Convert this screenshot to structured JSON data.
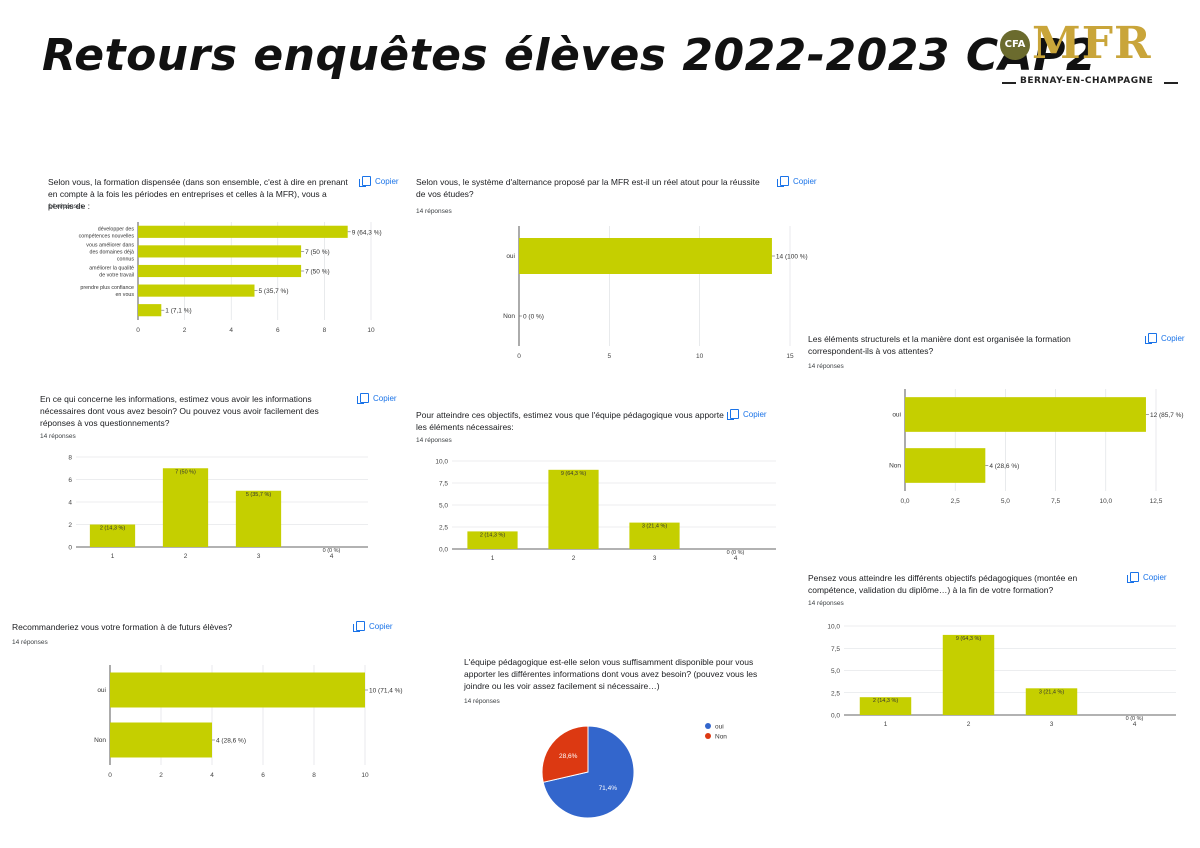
{
  "header": {
    "title": "Retours enquêtes élèves 2022-2023 CAP2",
    "logo_cfa": "CFA",
    "logo_mfr": "MFR",
    "logo_city": "BERNAY-EN-CHAMPAGNE"
  },
  "colors": {
    "bar": "#c5cf00",
    "pie_oui": "#3366cc",
    "pie_non": "#dc3912",
    "link": "#1a73e8"
  },
  "copy_label": "Copier",
  "charts": [
    {
      "question": "Selon vous, la formation dispensée (dans son ensemble, c'est à dire en prenant en compte à la fois les périodes en entreprises et celles à la MFR), vous a permis de :",
      "responses": "14 réponses"
    },
    {
      "question": "Selon vous, le système d'alternance proposé par la MFR est-il un réel atout pour la réussite de vos études?",
      "responses": "14 réponses"
    },
    {
      "question": "Les éléments structurels et la manière dont est organisée la formation correspondent-ils à vos attentes?",
      "responses": "14 réponses"
    },
    {
      "question": "En ce qui concerne les informations, estimez vous avoir les informations nécessaires dont vous avez besoin? Ou pouvez vous avoir facilement des réponses à vos questionnements?",
      "responses": "14 réponses"
    },
    {
      "question": "Pour atteindre ces objectifs, estimez vous que l'équipe pédagogique vous apporte les éléments nécessaires:",
      "responses": "14 réponses"
    },
    {
      "question": "Pensez vous atteindre les différents objectifs pédagogiques (montée en compétence, validation du diplôme…) à la fin de votre formation?",
      "responses": "14 réponses"
    },
    {
      "question": "Recommanderiez vous votre formation à de futurs élèves?",
      "responses": "14 réponses"
    },
    {
      "question": "L'équipe pédagogique est-elle selon vous suffisamment disponible pour vous apporter les différentes informations dont vous avez besoin? (pouvez vous les joindre ou les voir assez facilement si nécessaire…)",
      "responses": "14 réponses"
    }
  ],
  "chart_data": [
    {
      "type": "bar",
      "orientation": "horizontal",
      "categories": [
        "développer des compétences nouvelles",
        "vous améliorer dans des domaines déjà connus",
        "améliorer la qualité de votre travail",
        "prendre plus confiance en vous",
        ""
      ],
      "values": [
        9,
        7,
        7,
        5,
        1
      ],
      "value_labels": [
        "9 (64,3 %)",
        "7 (50 %)",
        "7 (50 %)",
        "5 (35,7 %)",
        "1 (7,1 %)"
      ],
      "xlim": [
        0,
        10
      ],
      "ticks": [
        "0",
        "2",
        "4",
        "6",
        "8",
        "10"
      ]
    },
    {
      "type": "bar",
      "orientation": "horizontal",
      "categories": [
        "oui",
        "Non"
      ],
      "values": [
        14,
        0
      ],
      "value_labels": [
        "14 (100 %)",
        "0 (0 %)"
      ],
      "xlim": [
        0,
        15
      ],
      "ticks": [
        "0",
        "5",
        "10",
        "15"
      ]
    },
    {
      "type": "bar",
      "orientation": "horizontal",
      "categories": [
        "oui",
        "Non"
      ],
      "values": [
        12,
        4
      ],
      "value_labels": [
        "12 (85,7 %)",
        "4 (28,6 %)"
      ],
      "xlim": [
        0,
        12.5
      ],
      "ticks": [
        "0,0",
        "2,5",
        "5,0",
        "7,5",
        "10,0",
        "12,5"
      ]
    },
    {
      "type": "bar",
      "orientation": "vertical",
      "categories": [
        "1",
        "2",
        "3",
        "4"
      ],
      "values": [
        2,
        7,
        5,
        0
      ],
      "value_labels": [
        "2 (14,3 %)",
        "7 (50 %)",
        "5 (35,7 %)",
        "0 (0 %)"
      ],
      "ylim": [
        0,
        8
      ],
      "ticks": [
        "0",
        "2",
        "4",
        "6",
        "8"
      ]
    },
    {
      "type": "bar",
      "orientation": "vertical",
      "categories": [
        "1",
        "2",
        "3",
        "4"
      ],
      "values": [
        2,
        9,
        3,
        0
      ],
      "value_labels": [
        "2 (14,3 %)",
        "9 (64,3 %)",
        "3 (21,4 %)",
        "0 (0 %)"
      ],
      "ylim": [
        0,
        10
      ],
      "ticks": [
        "0,0",
        "2,5",
        "5,0",
        "7,5",
        "10,0"
      ]
    },
    {
      "type": "bar",
      "orientation": "vertical",
      "categories": [
        "1",
        "2",
        "3",
        "4"
      ],
      "values": [
        2,
        9,
        3,
        0
      ],
      "value_labels": [
        "2 (14,3 %)",
        "9 (64,3 %)",
        "3 (21,4 %)",
        "0 (0 %)"
      ],
      "ylim": [
        0,
        10
      ],
      "ticks": [
        "0,0",
        "2,5",
        "5,0",
        "7,5",
        "10,0"
      ]
    },
    {
      "type": "bar",
      "orientation": "horizontal",
      "categories": [
        "oui",
        "Non"
      ],
      "values": [
        10,
        4
      ],
      "value_labels": [
        "10 (71,4 %)",
        "4 (28,6 %)"
      ],
      "xlim": [
        0,
        10
      ],
      "ticks": [
        "0",
        "2",
        "4",
        "6",
        "8",
        "10"
      ]
    },
    {
      "type": "pie",
      "categories": [
        "oui",
        "Non"
      ],
      "values": [
        71.4,
        28.6
      ],
      "slice_labels": [
        "71,4%",
        "28,6%"
      ],
      "legend": "right"
    }
  ]
}
